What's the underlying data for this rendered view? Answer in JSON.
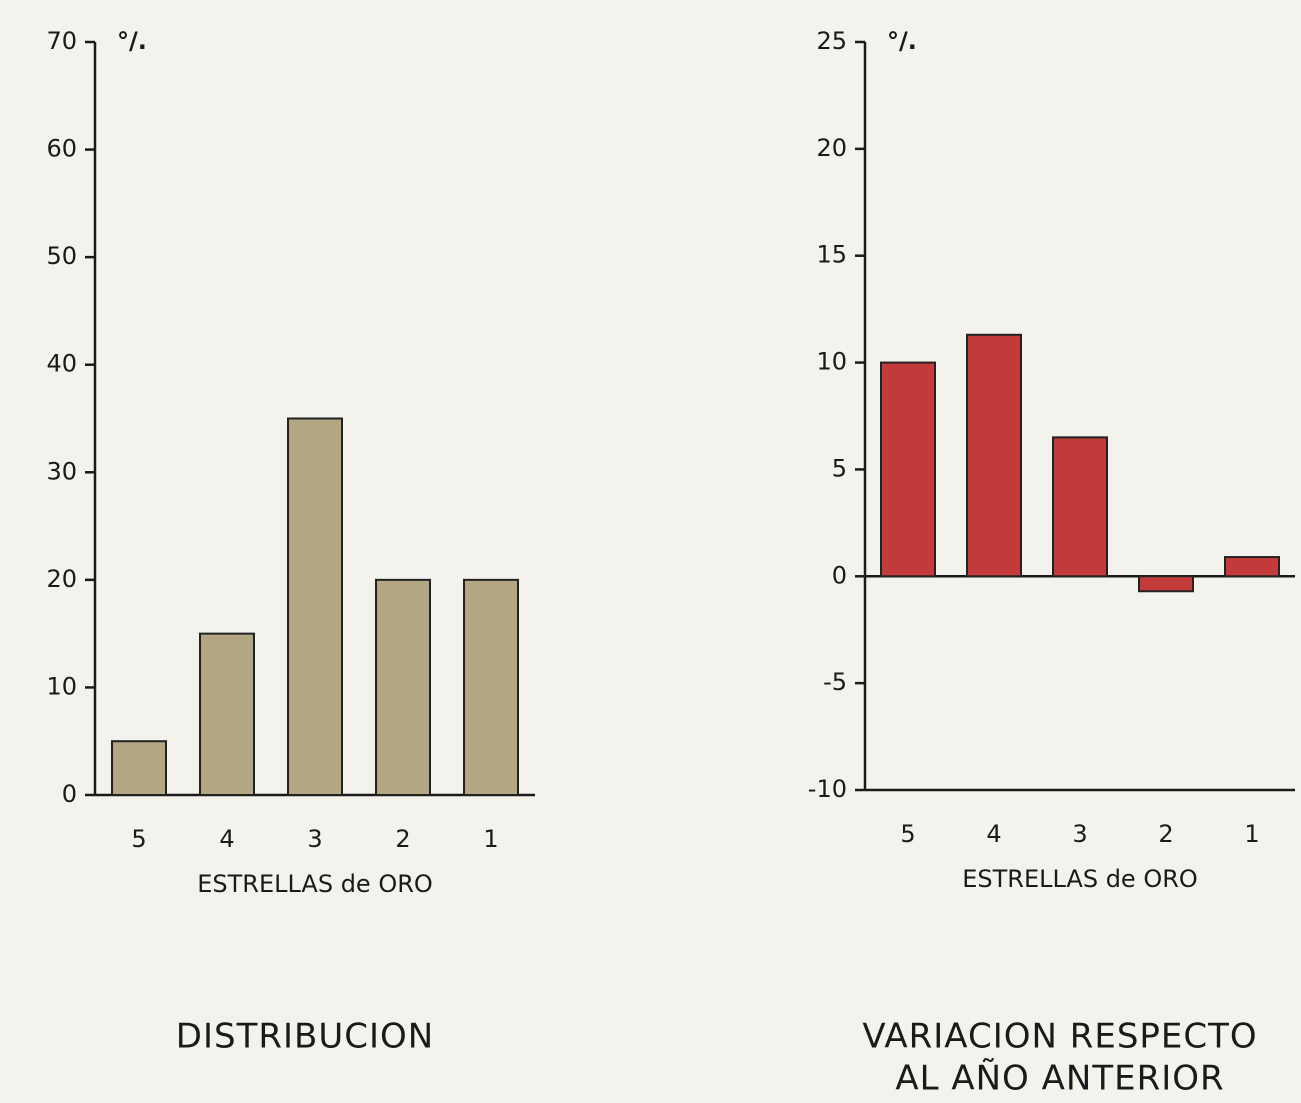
{
  "chart_data": [
    {
      "type": "bar",
      "title": [
        "DISTRIBUCION"
      ],
      "unit": "°/.",
      "x_label": "ESTRELLAS de ORO",
      "categories": [
        "5",
        "4",
        "3",
        "2",
        "1"
      ],
      "values": [
        5,
        15,
        35,
        20,
        20
      ],
      "color": "#b3a783",
      "ylim": [
        0,
        70
      ],
      "yticks": [
        0,
        10,
        20,
        30,
        40,
        50,
        60,
        70
      ]
    },
    {
      "type": "bar",
      "title": [
        "VARIACION RESPECTO",
        "AL AÑO ANTERIOR"
      ],
      "unit": "°/.",
      "x_label": "ESTRELLAS de ORO",
      "categories": [
        "5",
        "4",
        "3",
        "2",
        "1"
      ],
      "values": [
        10,
        11.3,
        6.5,
        -0.7,
        0.9
      ],
      "color": "#c23b3a",
      "ylim": [
        -10,
        25
      ],
      "yticks": [
        -10,
        -5,
        0,
        5,
        10,
        15,
        20,
        25
      ]
    }
  ]
}
